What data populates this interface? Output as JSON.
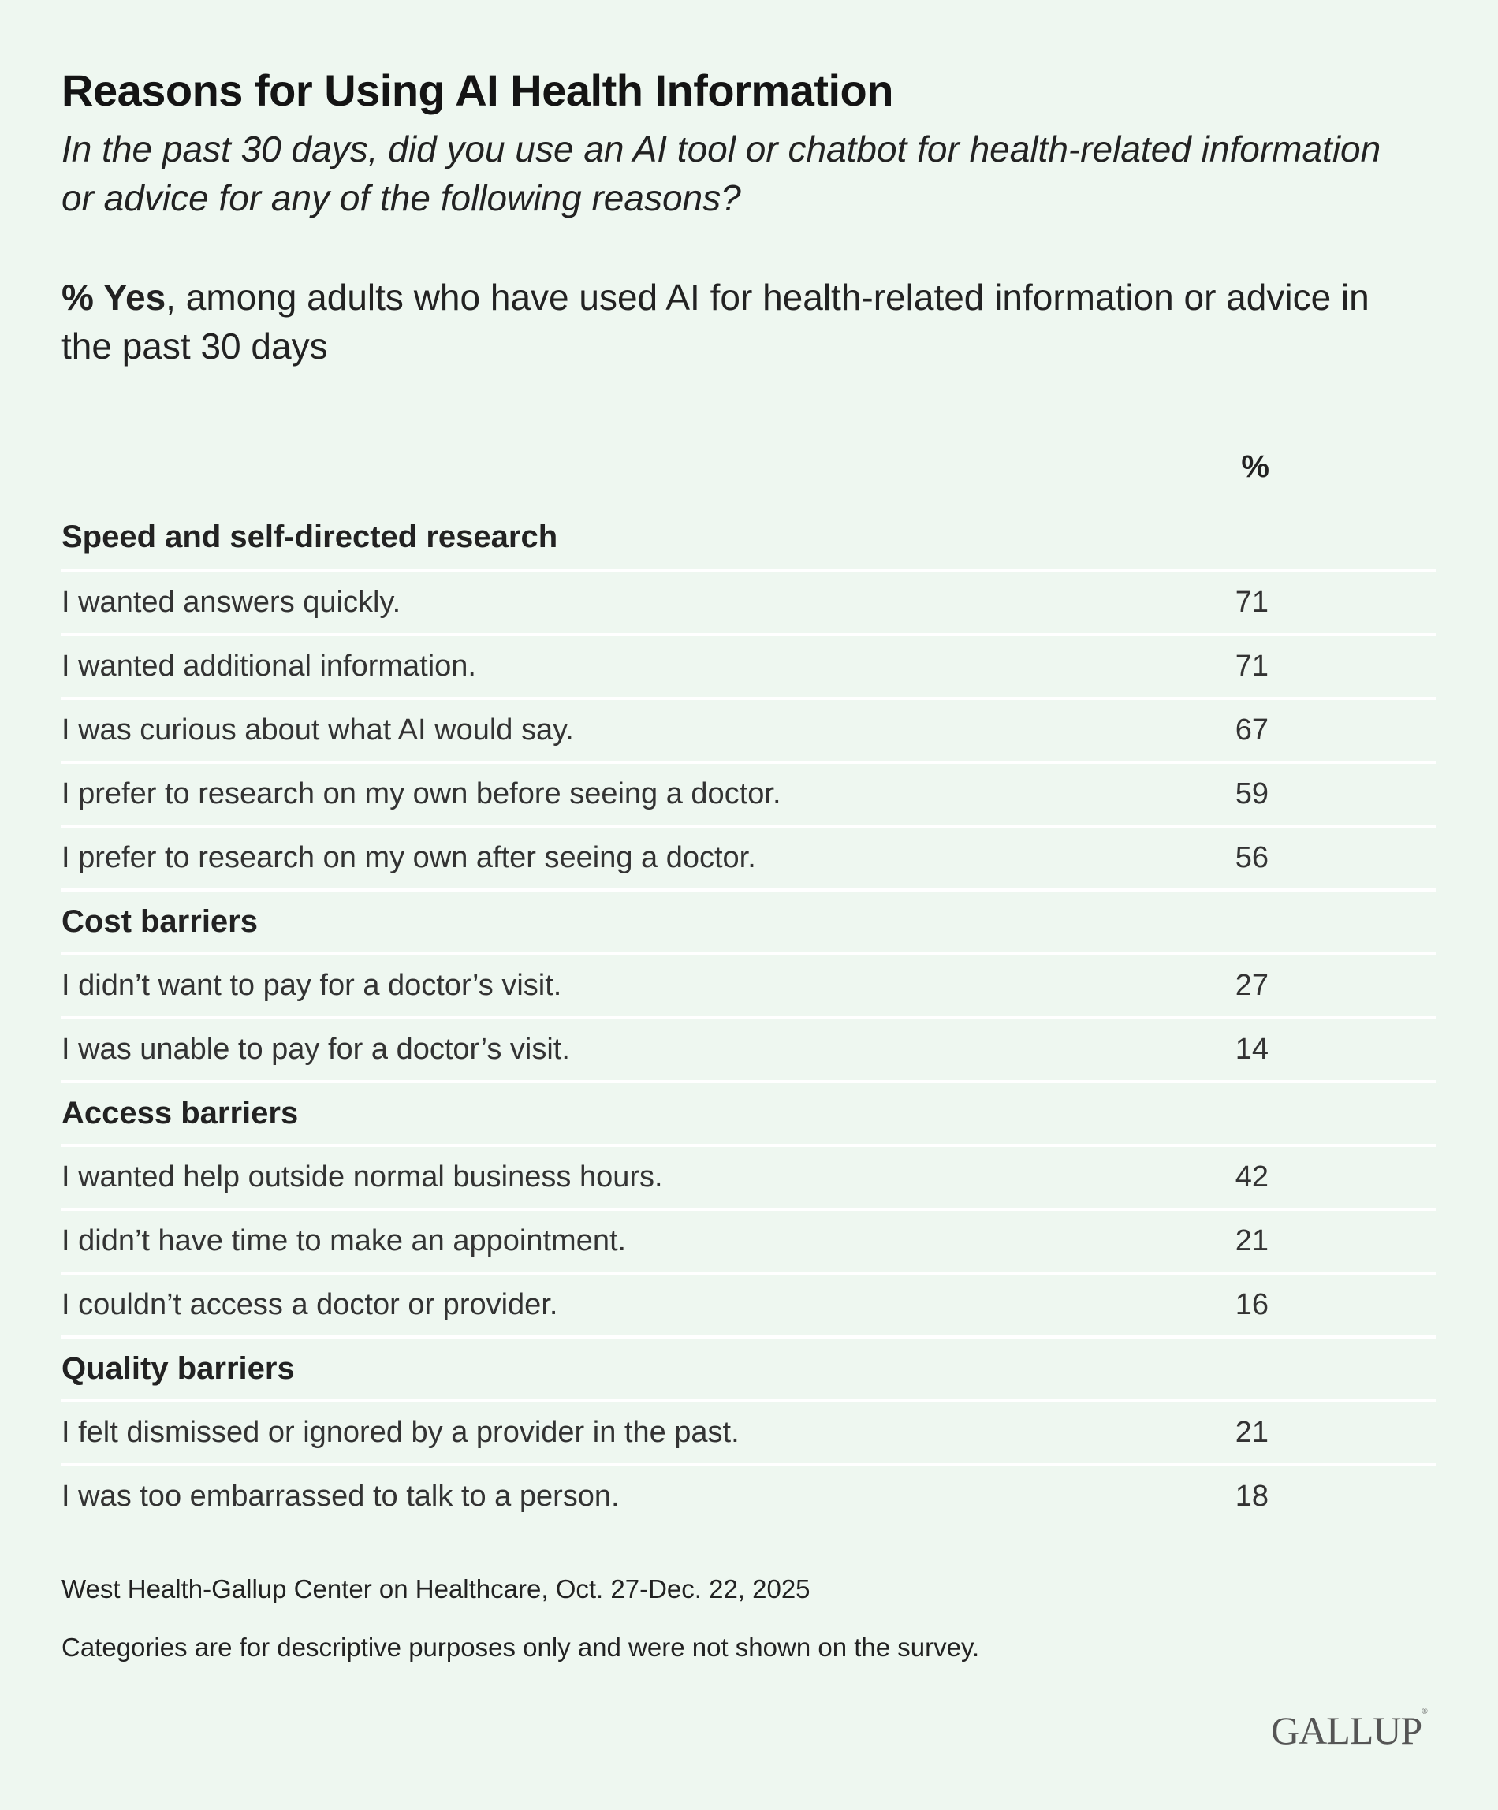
{
  "title": "Reasons for Using AI Health Information",
  "subtitle": "In the past 30 days, did you use an AI tool or chatbot for health-related information or advice for any of the following reasons?",
  "note_bold": "% Yes",
  "note_rest": ", among adults who have used AI for health-related information or advice in the past 30 days",
  "column_header": "%",
  "chart_data": {
    "type": "table",
    "columns": [
      "",
      "%"
    ],
    "groups": [
      {
        "name": "Speed and self-directed research",
        "rows": [
          {
            "label": "I wanted answers quickly.",
            "value": 71
          },
          {
            "label": "I wanted additional information.",
            "value": 71
          },
          {
            "label": "I was curious about what AI would say.",
            "value": 67
          },
          {
            "label": "I prefer to research on my own before seeing a doctor.",
            "value": 59
          },
          {
            "label": "I prefer to research on my own after seeing a doctor.",
            "value": 56
          }
        ]
      },
      {
        "name": "Cost barriers",
        "rows": [
          {
            "label": "I didn’t want to pay for a doctor’s visit.",
            "value": 27
          },
          {
            "label": "I was unable to pay for a doctor’s visit.",
            "value": 14
          }
        ]
      },
      {
        "name": "Access barriers",
        "rows": [
          {
            "label": "I wanted help outside normal business hours.",
            "value": 42
          },
          {
            "label": "I didn’t have time to make an appointment.",
            "value": 21
          },
          {
            "label": "I couldn’t access a doctor or provider.",
            "value": 16
          }
        ]
      },
      {
        "name": "Quality barriers",
        "rows": [
          {
            "label": "I felt dismissed or ignored by a provider in the past.",
            "value": 21
          },
          {
            "label": "I was too embarrassed to talk to a person.",
            "value": 18
          }
        ]
      }
    ]
  },
  "source": "West Health-Gallup Center on Healthcare, Oct. 27-Dec. 22, 2025",
  "footnote": "Categories are for descriptive purposes only and were not shown on the survey.",
  "logo": "GALLUP",
  "colors": {
    "background": "#eef7f0",
    "separator": "#ffffff",
    "text": "#222222"
  }
}
